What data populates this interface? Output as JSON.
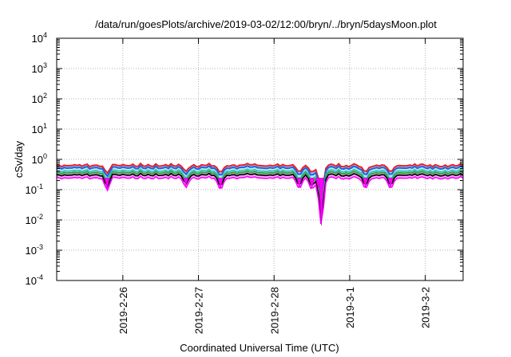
{
  "chart_data": {
    "type": "area",
    "title": "/data/run/goesPlots/archive/2019-03-02/12:00/bryn/../bryn/5daysMoon.plot",
    "xlabel": "Coordinated Universal Time (UTC)",
    "ylabel": "cSv/day",
    "y_scale": "log",
    "ylim": [
      0.0001,
      10000
    ],
    "y_ticks": [
      {
        "value": 0.0001,
        "mant": "10",
        "exp": "-4"
      },
      {
        "value": 0.001,
        "mant": "10",
        "exp": "-3"
      },
      {
        "value": 0.01,
        "mant": "10",
        "exp": "-2"
      },
      {
        "value": 0.1,
        "mant": "10",
        "exp": "-1"
      },
      {
        "value": 1,
        "mant": "10",
        "exp": "0"
      },
      {
        "value": 10,
        "mant": "10",
        "exp": "1"
      },
      {
        "value": 100,
        "mant": "10",
        "exp": "2"
      },
      {
        "value": 1000,
        "mant": "10",
        "exp": "3"
      },
      {
        "value": 10000,
        "mant": "10",
        "exp": "4"
      }
    ],
    "xlim": [
      "2019-02-25 03:00",
      "2019-03-02 12:00"
    ],
    "x_ticks": [
      "2019-2-26",
      "2019-2-27",
      "2019-2-28",
      "2019-3-1",
      "2019-3-2"
    ],
    "grid": true,
    "series": [
      {
        "color": "#e8202a",
        "level": 0.62
      },
      {
        "color": "#2060e0",
        "level": 0.52
      },
      {
        "color": "#30c0c0",
        "level": 0.41
      },
      {
        "color": "#30a040",
        "level": 0.36
      },
      {
        "color": "#000000",
        "level": 0.3
      },
      {
        "color": "#ff00ff",
        "level": 0.24
      }
    ],
    "dips": [
      {
        "x": "2019-02-25 19:00",
        "value": 0.11
      },
      {
        "x": "2019-02-26 20:00",
        "value": 0.14
      },
      {
        "x": "2019-02-27 07:00",
        "value": 0.11
      },
      {
        "x": "2019-02-28 08:00",
        "value": 0.12
      },
      {
        "x": "2019-02-28 12:00",
        "value": 0.11
      },
      {
        "x": "2019-02-28 14:00",
        "value": 0.11
      },
      {
        "x": "2019-02-28 15:00",
        "value": 0.0065
      },
      {
        "x": "2019-03-01 05:00",
        "value": 0.12
      },
      {
        "x": "2019-03-01 13:00",
        "value": 0.12
      }
    ]
  }
}
